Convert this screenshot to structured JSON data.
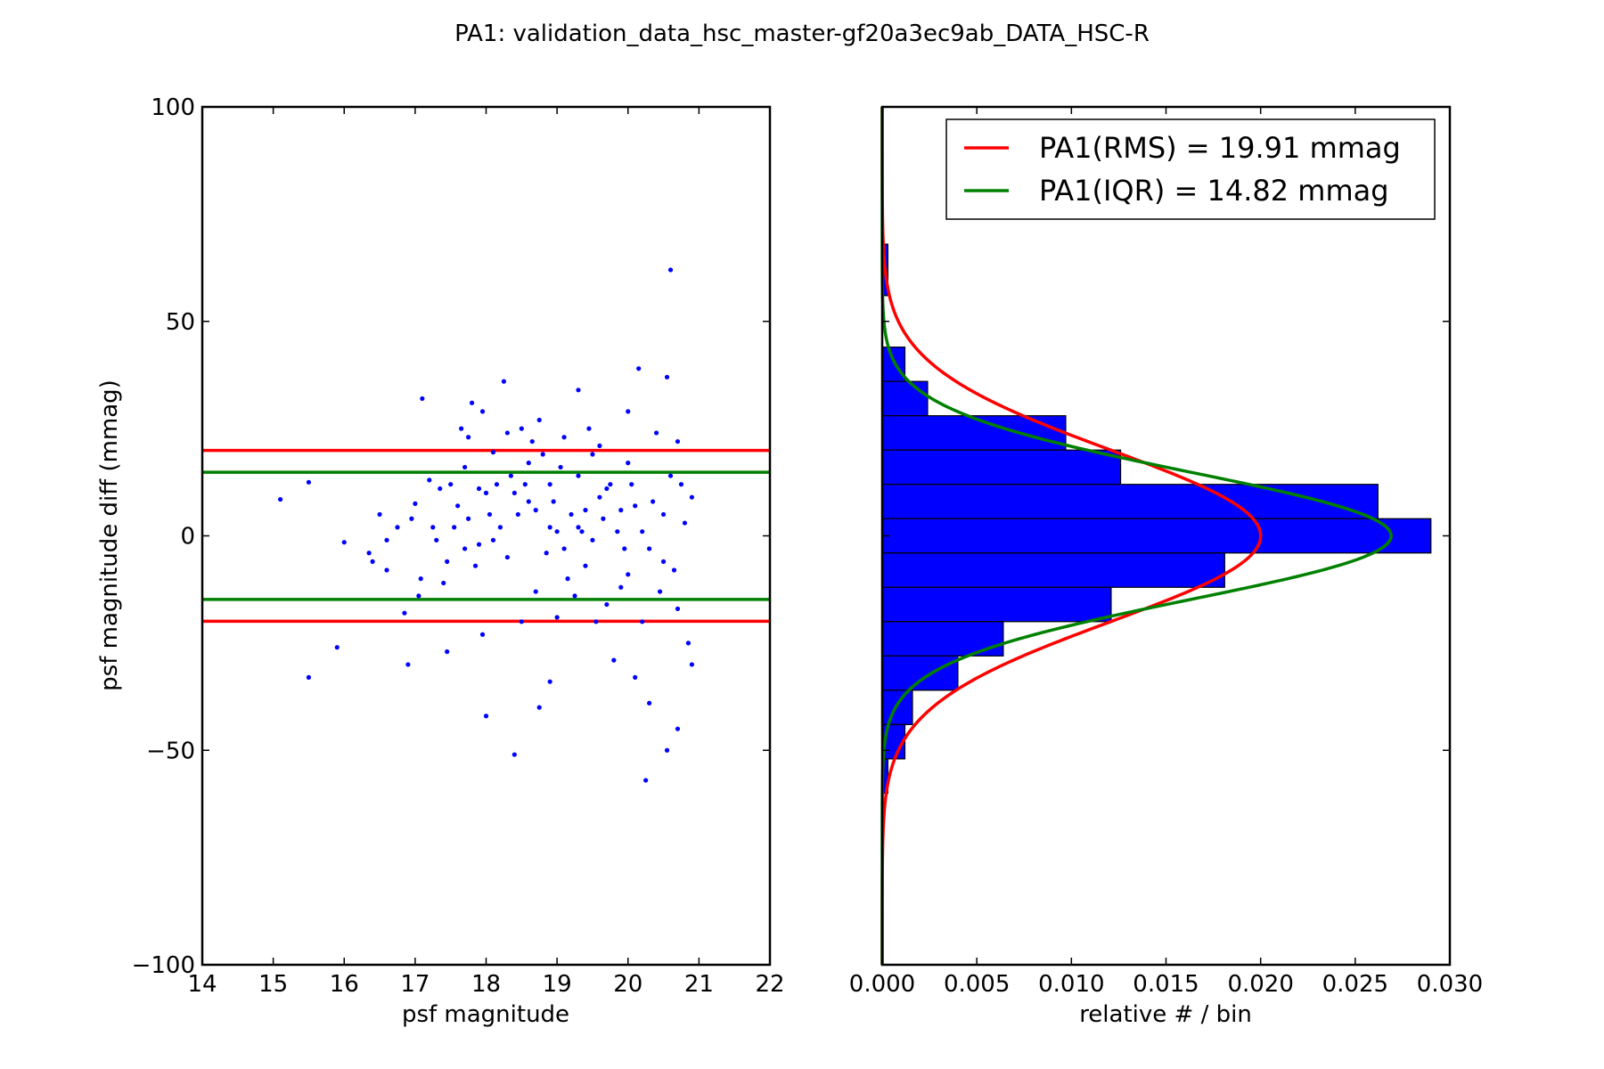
{
  "chart_data": {
    "title": "PA1: validation_data_hsc_master-gf20a3ec9ab_DATA_HSC-R",
    "panels": [
      {
        "type": "scatter",
        "xlabel": "psf magnitude",
        "ylabel": "psf magnitude diff (mmag)",
        "xlim": [
          14,
          22
        ],
        "ylim": [
          -100,
          100
        ],
        "xticks": [
          14,
          15,
          16,
          17,
          18,
          19,
          20,
          21,
          22
        ],
        "yticks": [
          -100,
          -50,
          0,
          50,
          100
        ],
        "xtick_labels": [
          "14",
          "15",
          "16",
          "17",
          "18",
          "19",
          "20",
          "21",
          "22"
        ],
        "ytick_labels": [
          "−100",
          "−50",
          "0",
          "50",
          "100"
        ],
        "point_color": "#0000ff",
        "points": [
          [
            15.1,
            8.5
          ],
          [
            15.5,
            12.5
          ],
          [
            15.5,
            -33
          ],
          [
            15.9,
            -26
          ],
          [
            16.0,
            -1.5
          ],
          [
            16.35,
            -4
          ],
          [
            16.4,
            -6
          ],
          [
            16.5,
            5
          ],
          [
            16.6,
            -1
          ],
          [
            16.6,
            -8
          ],
          [
            16.75,
            2
          ],
          [
            16.85,
            -18
          ],
          [
            16.9,
            -30
          ],
          [
            16.95,
            4
          ],
          [
            17.0,
            7.5
          ],
          [
            17.05,
            -14
          ],
          [
            17.08,
            -10
          ],
          [
            17.1,
            32
          ],
          [
            17.2,
            13
          ],
          [
            17.25,
            2
          ],
          [
            17.3,
            -1
          ],
          [
            17.35,
            11
          ],
          [
            17.4,
            -11
          ],
          [
            17.45,
            -6
          ],
          [
            17.45,
            -27
          ],
          [
            17.5,
            12
          ],
          [
            17.55,
            2
          ],
          [
            17.6,
            7
          ],
          [
            17.65,
            25
          ],
          [
            17.7,
            16
          ],
          [
            17.75,
            23
          ],
          [
            17.75,
            4
          ],
          [
            17.8,
            31
          ],
          [
            17.85,
            -7
          ],
          [
            17.9,
            11
          ],
          [
            17.9,
            -2
          ],
          [
            17.95,
            29
          ],
          [
            18.0,
            10
          ],
          [
            18.0,
            -42
          ],
          [
            18.05,
            5
          ],
          [
            18.1,
            19.5
          ],
          [
            18.1,
            -1
          ],
          [
            18.15,
            12
          ],
          [
            18.2,
            2
          ],
          [
            18.25,
            36
          ],
          [
            18.3,
            24
          ],
          [
            18.35,
            14
          ],
          [
            18.4,
            -51
          ],
          [
            18.45,
            5
          ],
          [
            18.5,
            25
          ],
          [
            18.5,
            -20
          ],
          [
            18.55,
            12
          ],
          [
            18.6,
            17
          ],
          [
            18.65,
            22
          ],
          [
            18.7,
            6
          ],
          [
            18.7,
            -13
          ],
          [
            18.75,
            27
          ],
          [
            18.75,
            -40
          ],
          [
            18.8,
            19
          ],
          [
            18.85,
            -4
          ],
          [
            18.9,
            12
          ],
          [
            18.9,
            -34
          ],
          [
            18.95,
            8
          ],
          [
            19.0,
            1
          ],
          [
            19.0,
            -19
          ],
          [
            19.05,
            16
          ],
          [
            19.1,
            23
          ],
          [
            19.15,
            -10
          ],
          [
            19.2,
            5
          ],
          [
            19.25,
            -14
          ],
          [
            19.3,
            34
          ],
          [
            19.3,
            14
          ],
          [
            19.35,
            1
          ],
          [
            19.4,
            -7
          ],
          [
            19.45,
            25
          ],
          [
            19.5,
            19
          ],
          [
            19.55,
            -20
          ],
          [
            19.6,
            9
          ],
          [
            19.65,
            4
          ],
          [
            19.7,
            -16
          ],
          [
            19.75,
            12
          ],
          [
            19.8,
            -29
          ],
          [
            19.85,
            1
          ],
          [
            19.9,
            6
          ],
          [
            19.95,
            -3
          ],
          [
            20.0,
            29
          ],
          [
            20.0,
            -9
          ],
          [
            20.05,
            12
          ],
          [
            20.1,
            -33
          ],
          [
            20.15,
            39
          ],
          [
            20.2,
            1
          ],
          [
            20.25,
            -57
          ],
          [
            20.3,
            -39
          ],
          [
            20.35,
            8
          ],
          [
            20.4,
            24
          ],
          [
            20.45,
            -13
          ],
          [
            20.5,
            5
          ],
          [
            20.55,
            37
          ],
          [
            20.55,
            -50
          ],
          [
            20.6,
            62
          ],
          [
            20.6,
            14
          ],
          [
            20.65,
            -8
          ],
          [
            20.7,
            22
          ],
          [
            20.7,
            -45
          ],
          [
            20.75,
            12
          ],
          [
            20.8,
            3
          ],
          [
            20.85,
            -25
          ],
          [
            20.9,
            -30
          ],
          [
            20.9,
            9
          ],
          [
            19.3,
            2
          ],
          [
            18.3,
            -5
          ],
          [
            19.7,
            11
          ],
          [
            20.3,
            -3
          ],
          [
            18.9,
            2
          ],
          [
            19.5,
            -1
          ],
          [
            20.1,
            7
          ],
          [
            17.7,
            -3
          ],
          [
            18.6,
            8
          ],
          [
            19.1,
            -3
          ],
          [
            20.5,
            -6
          ],
          [
            19.9,
            -12
          ],
          [
            20.2,
            -20
          ],
          [
            18.4,
            10
          ],
          [
            19.6,
            21
          ],
          [
            20.7,
            -17
          ],
          [
            17.95,
            -23
          ],
          [
            19.4,
            6
          ],
          [
            20.0,
            17
          ]
        ],
        "hlines": [
          {
            "y": 19.91,
            "color": "#ff0000"
          },
          {
            "y": -19.91,
            "color": "#ff0000"
          },
          {
            "y": 14.82,
            "color": "#008000"
          },
          {
            "y": -14.82,
            "color": "#008000"
          }
        ]
      },
      {
        "type": "histogram",
        "orientation": "horizontal",
        "xlabel": "relative # / bin",
        "xlim": [
          0.0,
          0.03
        ],
        "ylim": [
          -100,
          100
        ],
        "xticks": [
          0.0,
          0.005,
          0.01,
          0.015,
          0.02,
          0.025,
          0.03
        ],
        "xtick_labels": [
          "0.000",
          "0.005",
          "0.010",
          "0.015",
          "0.020",
          "0.025",
          "0.030"
        ],
        "bar_color": "#0000ff",
        "bins": [
          {
            "y0": 56,
            "y1": 68,
            "value": 0.0003
          },
          {
            "y0": 36,
            "y1": 44,
            "value": 0.0012
          },
          {
            "y0": 28,
            "y1": 36,
            "value": 0.0024
          },
          {
            "y0": 20,
            "y1": 28,
            "value": 0.0097
          },
          {
            "y0": 12,
            "y1": 20,
            "value": 0.0126
          },
          {
            "y0": 4,
            "y1": 12,
            "value": 0.0262
          },
          {
            "y0": -4,
            "y1": 4,
            "value": 0.029
          },
          {
            "y0": -12,
            "y1": -4,
            "value": 0.0181
          },
          {
            "y0": -20,
            "y1": -12,
            "value": 0.0121
          },
          {
            "y0": -28,
            "y1": -20,
            "value": 0.0064
          },
          {
            "y0": -36,
            "y1": -28,
            "value": 0.004
          },
          {
            "y0": -44,
            "y1": -36,
            "value": 0.0016
          },
          {
            "y0": -52,
            "y1": -44,
            "value": 0.0012
          },
          {
            "y0": -60,
            "y1": -52,
            "value": 0.0003
          }
        ],
        "curves": [
          {
            "name": "PA1(RMS) = 19.91 mmag",
            "sigma": 19.91,
            "peak": 0.02,
            "color": "#ff0000"
          },
          {
            "name": "PA1(IQR) = 14.82 mmag",
            "sigma": 14.82,
            "peak": 0.0269,
            "color": "#008000"
          }
        ],
        "legend": {
          "location": "upper right"
        }
      }
    ]
  }
}
